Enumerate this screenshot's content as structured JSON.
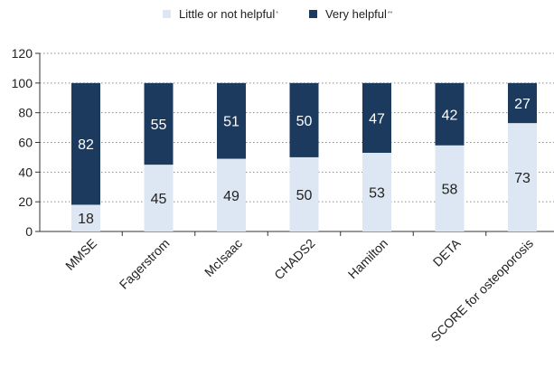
{
  "chart_data": {
    "type": "bar",
    "stacked": true,
    "categories": [
      "MMSE",
      "Fagerstrom",
      "McIsaac",
      "CHADS2",
      "Hamilton",
      "DETA",
      "SCORE for osteoporosis"
    ],
    "series": [
      {
        "name": "Little or not helpful",
        "marker": "*",
        "color": "#dde7f4",
        "values": [
          18,
          45,
          49,
          50,
          53,
          58,
          73
        ]
      },
      {
        "name": "Very helpful",
        "marker": "**",
        "color": "#1b3a5e",
        "values": [
          82,
          55,
          51,
          50,
          47,
          42,
          27
        ]
      }
    ],
    "ylim": [
      0,
      120
    ],
    "yticks": [
      0,
      20,
      40,
      60,
      80,
      100,
      120
    ],
    "grid": "dotted-at-ticks",
    "legend_position": "top",
    "title": "",
    "xlabel": "",
    "ylabel": ""
  }
}
